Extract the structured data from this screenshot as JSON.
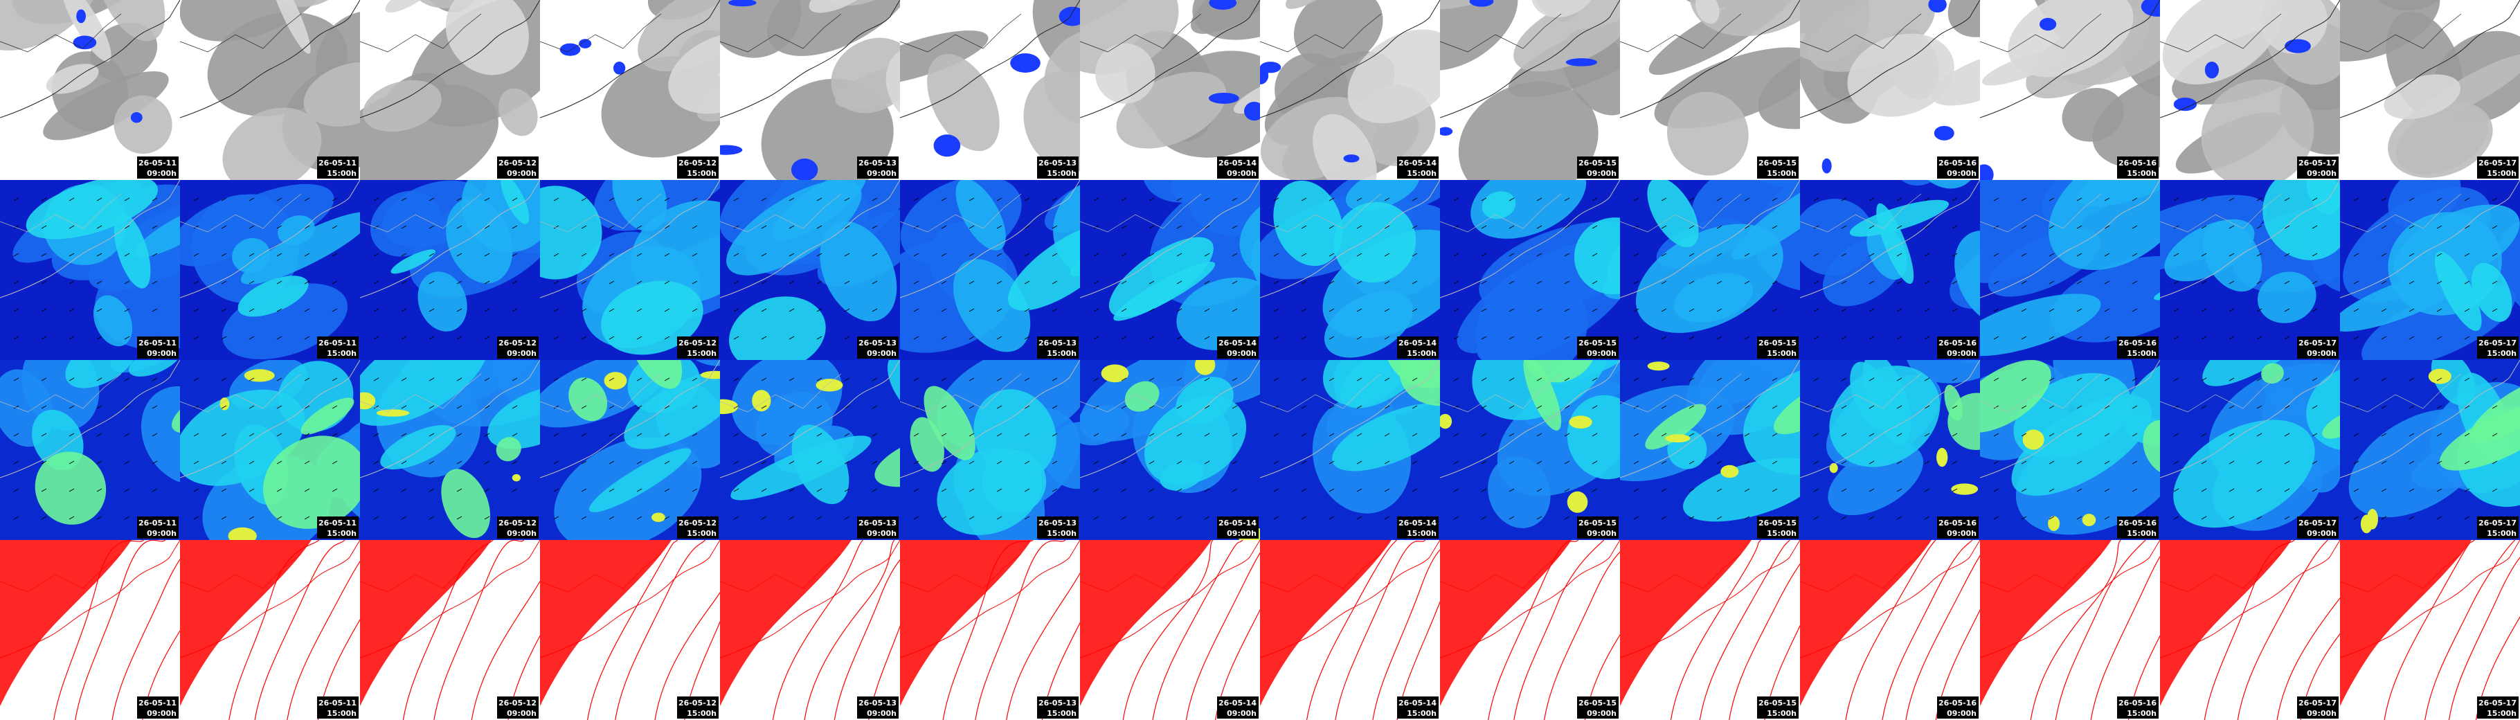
{
  "columns": [
    {
      "date": "26-05-11",
      "time": "09:00h"
    },
    {
      "date": "26-05-11",
      "time": "15:00h"
    },
    {
      "date": "26-05-12",
      "time": "09:00h"
    },
    {
      "date": "26-05-12",
      "time": "15:00h"
    },
    {
      "date": "26-05-13",
      "time": "09:00h"
    },
    {
      "date": "26-05-13",
      "time": "15:00h"
    },
    {
      "date": "26-05-14",
      "time": "09:00h"
    },
    {
      "date": "26-05-14",
      "time": "15:00h"
    },
    {
      "date": "26-05-15",
      "time": "09:00h"
    },
    {
      "date": "26-05-15",
      "time": "15:00h"
    },
    {
      "date": "26-05-16",
      "time": "09:00h"
    },
    {
      "date": "26-05-16",
      "time": "15:00h"
    },
    {
      "date": "26-05-17",
      "time": "09:00h"
    },
    {
      "date": "26-05-17",
      "time": "15:00h"
    }
  ]
}
